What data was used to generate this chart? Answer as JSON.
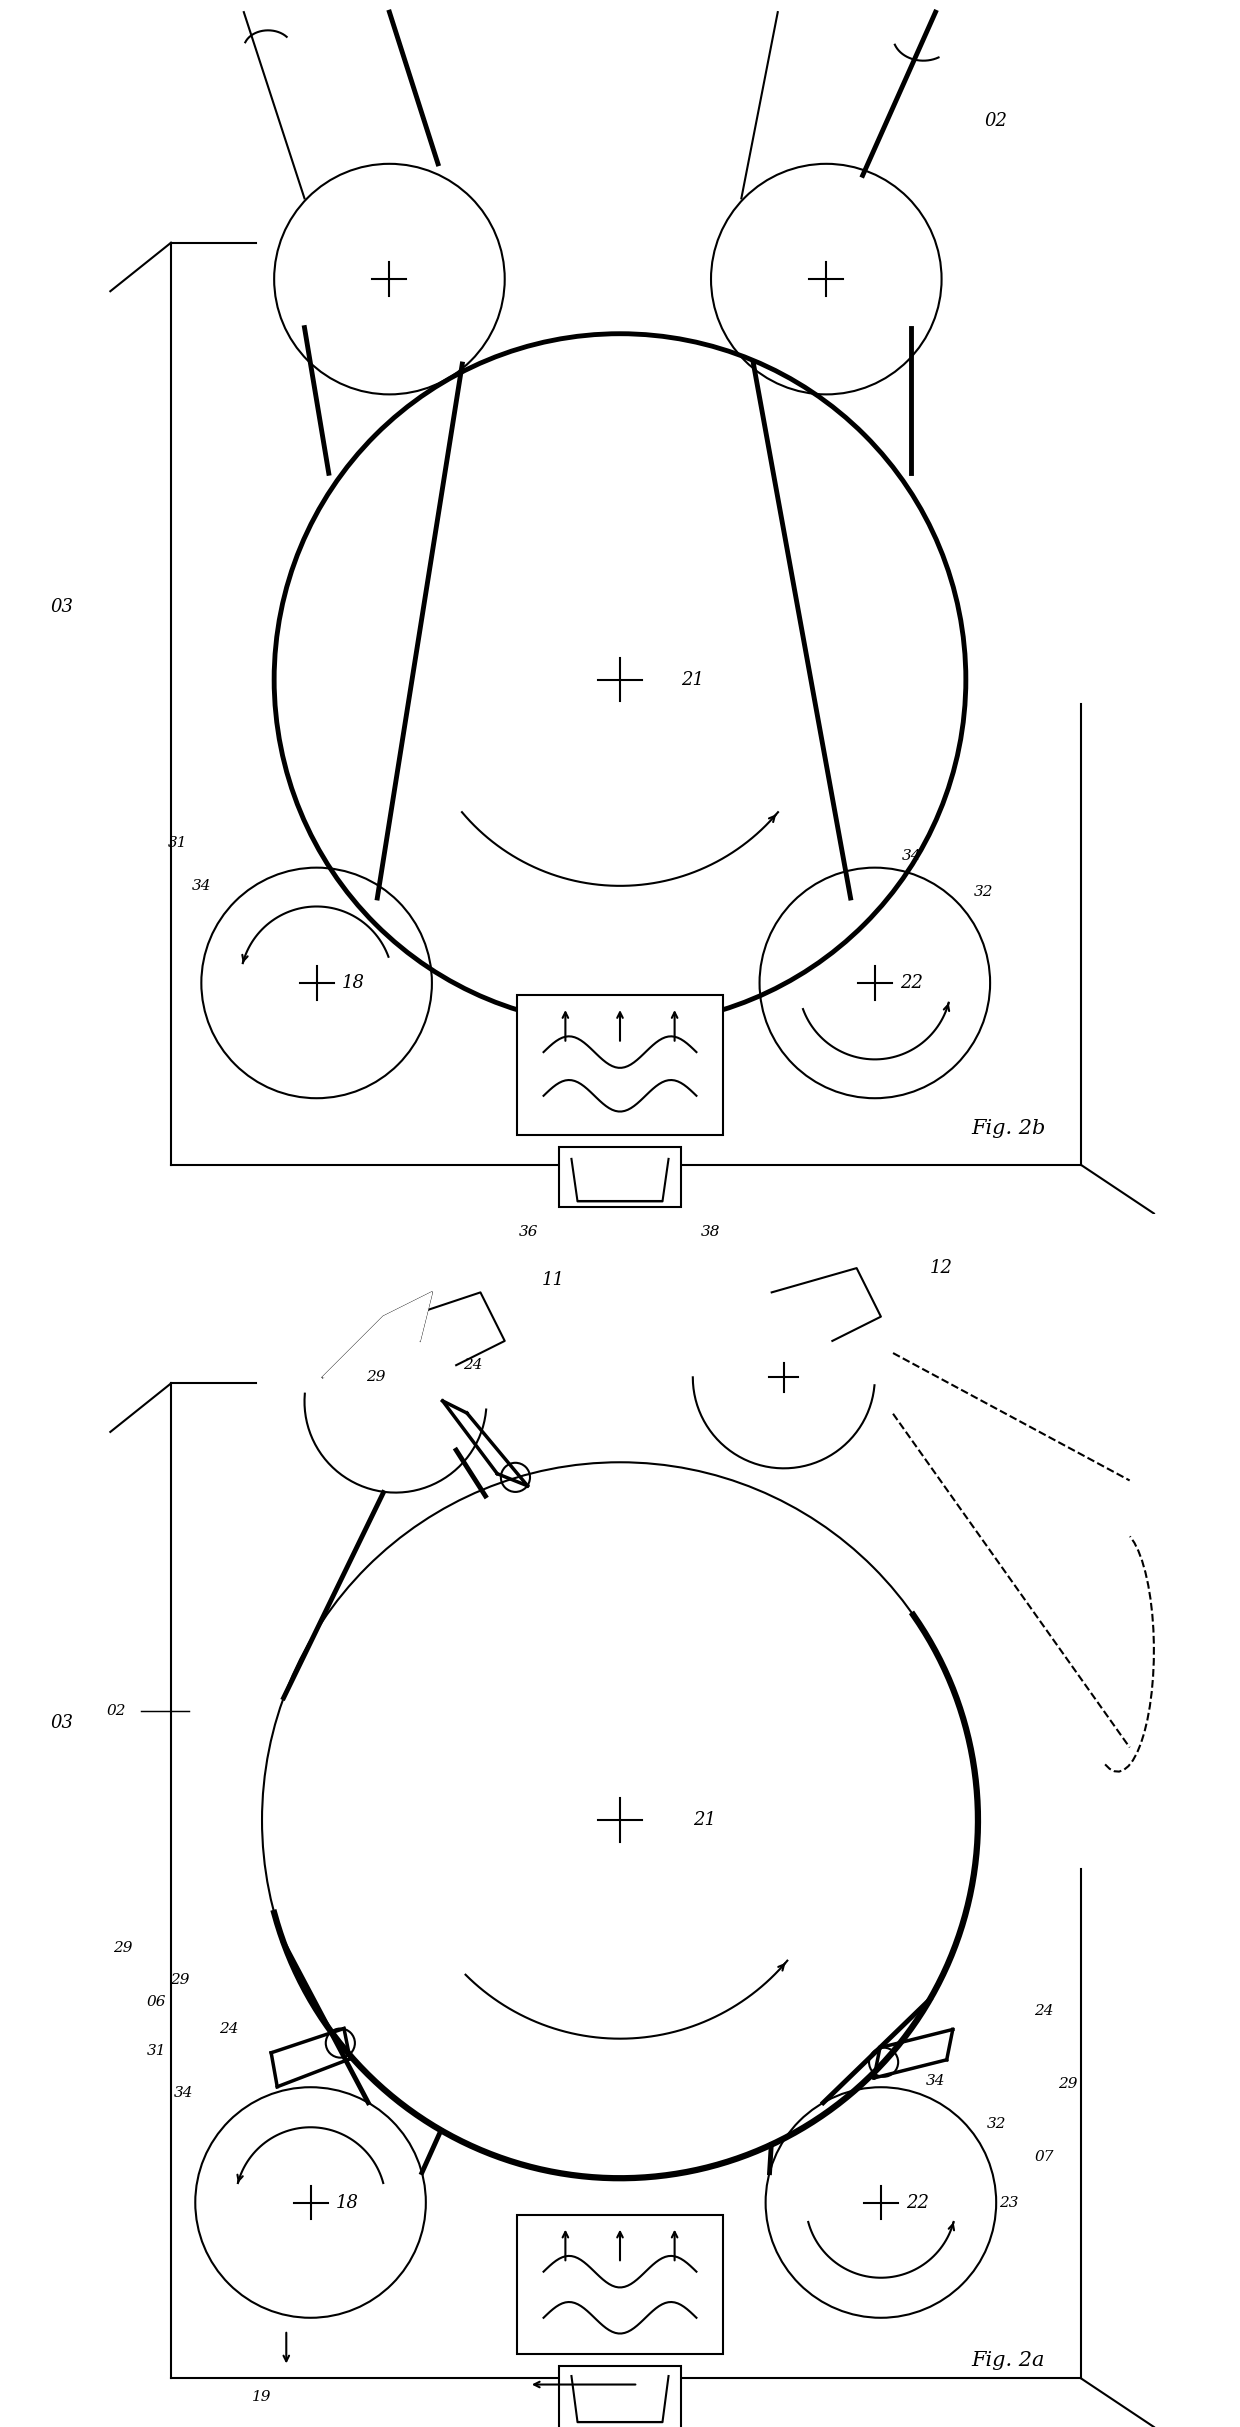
{
  "fig_width": 12.4,
  "fig_height": 24.27,
  "bg_color": "#ffffff",
  "line_color": "#000000",
  "thick_lw": 3.5,
  "thin_lw": 1.5,
  "label_fontsize": 13
}
